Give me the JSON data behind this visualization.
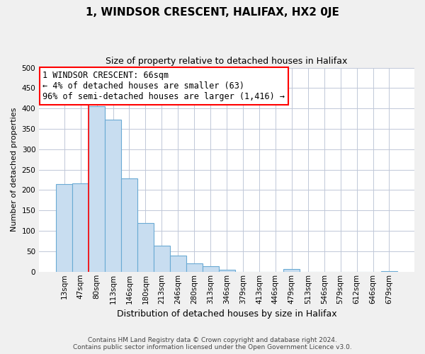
{
  "title": "1, WINDSOR CRESCENT, HALIFAX, HX2 0JE",
  "subtitle": "Size of property relative to detached houses in Halifax",
  "xlabel": "Distribution of detached houses by size in Halifax",
  "ylabel": "Number of detached properties",
  "bar_color": "#c8ddf0",
  "bar_edge_color": "#6aaad4",
  "categories": [
    "13sqm",
    "47sqm",
    "80sqm",
    "113sqm",
    "146sqm",
    "180sqm",
    "213sqm",
    "246sqm",
    "280sqm",
    "313sqm",
    "346sqm",
    "379sqm",
    "413sqm",
    "446sqm",
    "479sqm",
    "513sqm",
    "546sqm",
    "579sqm",
    "612sqm",
    "646sqm",
    "679sqm"
  ],
  "values": [
    215,
    217,
    405,
    372,
    228,
    119,
    63,
    39,
    20,
    14,
    5,
    0,
    0,
    0,
    7,
    0,
    0,
    0,
    0,
    0,
    2
  ],
  "ylim": [
    0,
    500
  ],
  "yticks": [
    0,
    50,
    100,
    150,
    200,
    250,
    300,
    350,
    400,
    450,
    500
  ],
  "red_line_x": 1.5,
  "annotation_title": "1 WINDSOR CRESCENT: 66sqm",
  "annotation_line1": "← 4% of detached houses are smaller (63)",
  "annotation_line2": "96% of semi-detached houses are larger (1,416) →",
  "footer_line1": "Contains HM Land Registry data © Crown copyright and database right 2024.",
  "footer_line2": "Contains public sector information licensed under the Open Government Licence v3.0.",
  "bg_color": "#f0f0f0",
  "plot_bg_color": "#ffffff",
  "grid_color": "#c0c8d8",
  "title_fontsize": 11,
  "subtitle_fontsize": 9,
  "ylabel_fontsize": 8,
  "xlabel_fontsize": 9,
  "tick_fontsize": 7.5,
  "annotation_fontsize": 8.5,
  "footer_fontsize": 6.5
}
